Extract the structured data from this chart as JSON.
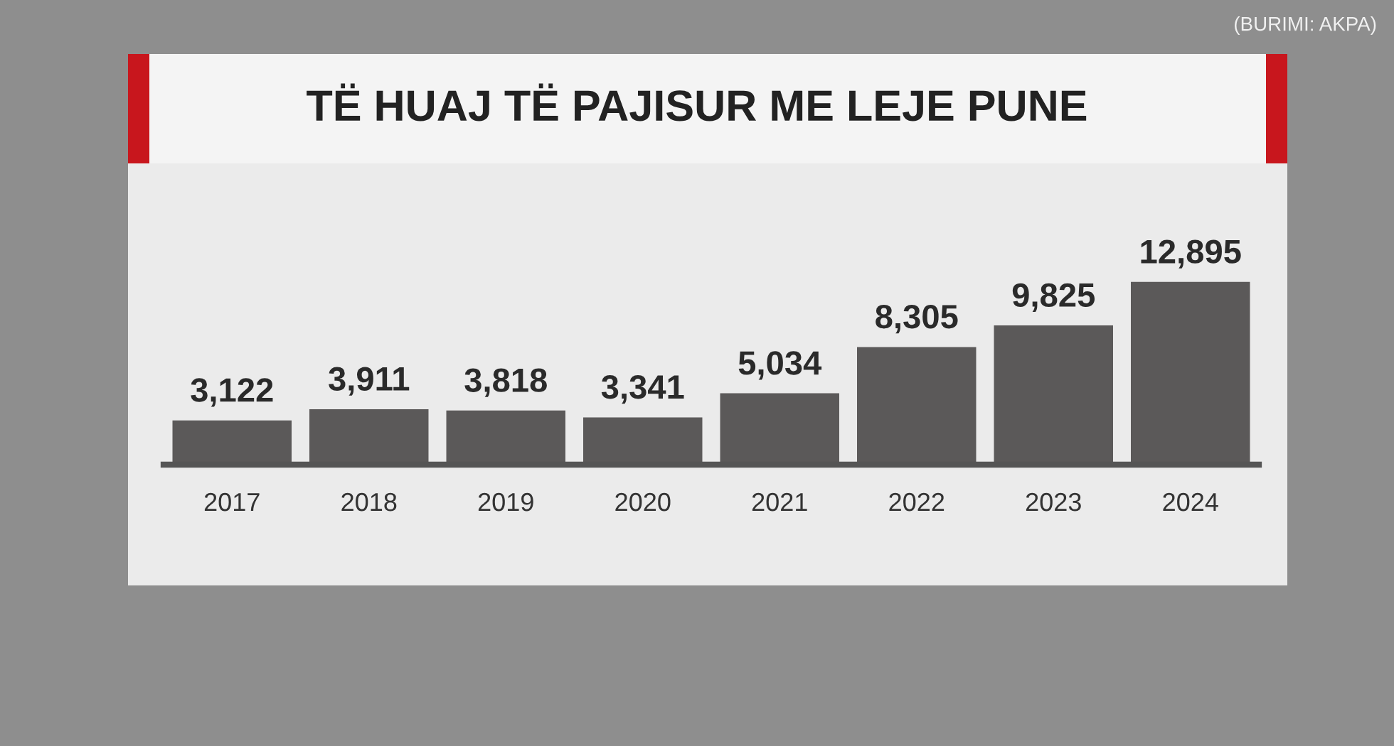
{
  "chart_data": {
    "type": "bar",
    "title": "TË HUAJ TË PAJISUR ME LEJE PUNE",
    "categories": [
      "2017",
      "2018",
      "2019",
      "2020",
      "2021",
      "2022",
      "2023",
      "2024"
    ],
    "values": [
      3122,
      3911,
      3818,
      3341,
      5034,
      8305,
      9825,
      12895
    ],
    "color": "#5b5959",
    "data_labels": true,
    "value_labels": [
      "3,122",
      "3,911",
      "3,818",
      "3,341",
      "5,034",
      "8,305",
      "9,825",
      "12,895"
    ],
    "annotations": [
      "(BURIMI: AKPA)"
    ],
    "grid": false,
    "legend": false
  }
}
